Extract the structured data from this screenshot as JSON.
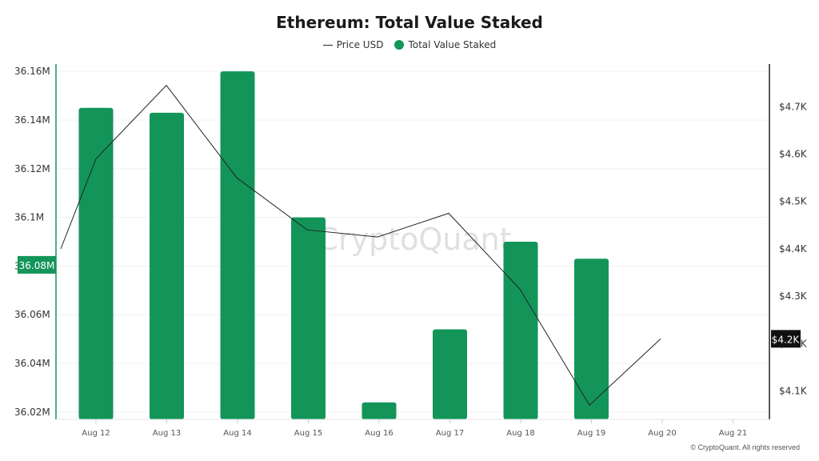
{
  "chart_data": {
    "type": "bar",
    "title": "Ethereum: Total Value Staked",
    "categories": [
      "Aug 12",
      "Aug 13",
      "Aug 14",
      "Aug 15",
      "Aug 16",
      "Aug 17",
      "Aug 18",
      "Aug 19",
      "Aug 20",
      "Aug 21"
    ],
    "series": [
      {
        "name": "Total Value Staked",
        "type": "bar",
        "axis": "left",
        "color": "#13955a",
        "values": [
          36.145,
          36.143,
          36.16,
          36.1,
          36.024,
          36.054,
          36.09,
          36.083,
          null,
          null
        ]
      },
      {
        "name": "Price USD",
        "type": "line",
        "axis": "right",
        "color": "#222222",
        "x": [
          "Aug 11.5",
          "Aug 12",
          "Aug 13",
          "Aug 14",
          "Aug 15",
          "Aug 16",
          "Aug 17",
          "Aug 18",
          "Aug 19",
          "Aug 20"
        ],
        "values": [
          4400,
          4590,
          4745,
          4550,
          4440,
          4425,
          4475,
          4315,
          4070,
          4210
        ]
      }
    ],
    "left_axis": {
      "ticks": [
        "36.16M",
        "36.14M",
        "36.12M",
        "36.1M",
        "36.08M",
        "36.06M",
        "36.04M",
        "36.02M"
      ],
      "tick_values": [
        36.16,
        36.14,
        36.12,
        36.1,
        36.08,
        36.06,
        36.04,
        36.02
      ],
      "ylim": [
        36.017,
        36.163
      ]
    },
    "right_axis": {
      "ticks": [
        "$4.7K",
        "$4.6K",
        "$4.5K",
        "$4.4K",
        "$4.3K",
        "$4.2K",
        "$4.1K"
      ],
      "tick_values": [
        4700,
        4600,
        4500,
        4400,
        4300,
        4200,
        4100
      ],
      "ylim": [
        4040,
        4790
      ]
    },
    "left_highlight_label": "36.08M",
    "right_highlight_label": "$4.2K",
    "watermark": "CryptoQuant",
    "legend": [
      {
        "label": "Price USD",
        "marker": "line",
        "color": "#222222"
      },
      {
        "label": "Total Value Staked",
        "marker": "dot",
        "color": "#13955a"
      }
    ],
    "legend_position": "top-center",
    "grid": true
  },
  "copyright": "© CryptoQuant. All rights reserved"
}
